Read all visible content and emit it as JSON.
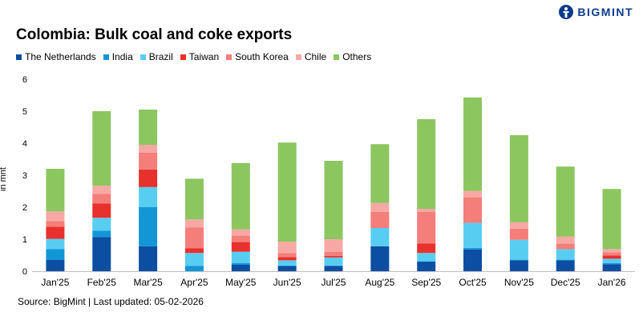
{
  "brand": {
    "name": "BIGMINT",
    "color": "#0b3c8c"
  },
  "source": "Source: BigMint | Last updated: 05-02-2026",
  "chart_data": {
    "type": "bar",
    "stacked": true,
    "title": "Colombia: Bulk coal and coke exports",
    "xlabel": "",
    "ylabel": "in mnt",
    "ylim": [
      0,
      6
    ],
    "yticks": [
      0,
      1,
      2,
      3,
      4,
      5,
      6
    ],
    "grid": false,
    "legend_position": "top-left",
    "categories": [
      "Jan'25",
      "Feb'25",
      "Mar'25",
      "Apr'25",
      "May'25",
      "Jun'25",
      "Jul'25",
      "Aug'25",
      "Sep'25",
      "Oct'25",
      "Nov'25",
      "Dec'25",
      "Jan'26"
    ],
    "series": [
      {
        "name": "The Netherlands",
        "color": "#0c4ea2",
        "values": [
          0.35,
          1.07,
          0.78,
          0.0,
          0.2,
          0.16,
          0.16,
          0.78,
          0.3,
          0.68,
          0.34,
          0.34,
          0.22
        ]
      },
      {
        "name": "India",
        "color": "#1396d6",
        "values": [
          0.34,
          0.2,
          1.22,
          0.17,
          0.05,
          0.02,
          0.02,
          0.0,
          0.0,
          0.05,
          0.02,
          0.02,
          0.03
        ]
      },
      {
        "name": "Brazil",
        "color": "#58cdf2",
        "values": [
          0.32,
          0.4,
          0.63,
          0.4,
          0.36,
          0.16,
          0.25,
          0.57,
          0.27,
          0.78,
          0.62,
          0.33,
          0.14
        ]
      },
      {
        "name": "Taiwan",
        "color": "#e8302c",
        "values": [
          0.38,
          0.45,
          0.55,
          0.15,
          0.3,
          0.1,
          0.05,
          0.0,
          0.3,
          0.0,
          0.0,
          0.0,
          0.1
        ]
      },
      {
        "name": "South Korea",
        "color": "#f47e7a",
        "values": [
          0.18,
          0.3,
          0.52,
          0.65,
          0.2,
          0.13,
          0.12,
          0.5,
          0.98,
          0.8,
          0.35,
          0.17,
          0.1
        ]
      },
      {
        "name": "Chile",
        "color": "#f7a8a4",
        "values": [
          0.3,
          0.25,
          0.25,
          0.25,
          0.2,
          0.35,
          0.4,
          0.28,
          0.1,
          0.2,
          0.2,
          0.22,
          0.1
        ]
      },
      {
        "name": "Others",
        "color": "#8bc65f",
        "values": [
          1.33,
          2.33,
          1.1,
          1.27,
          2.07,
          3.1,
          2.45,
          1.84,
          2.8,
          2.92,
          2.72,
          2.19,
          1.88
        ]
      }
    ]
  }
}
